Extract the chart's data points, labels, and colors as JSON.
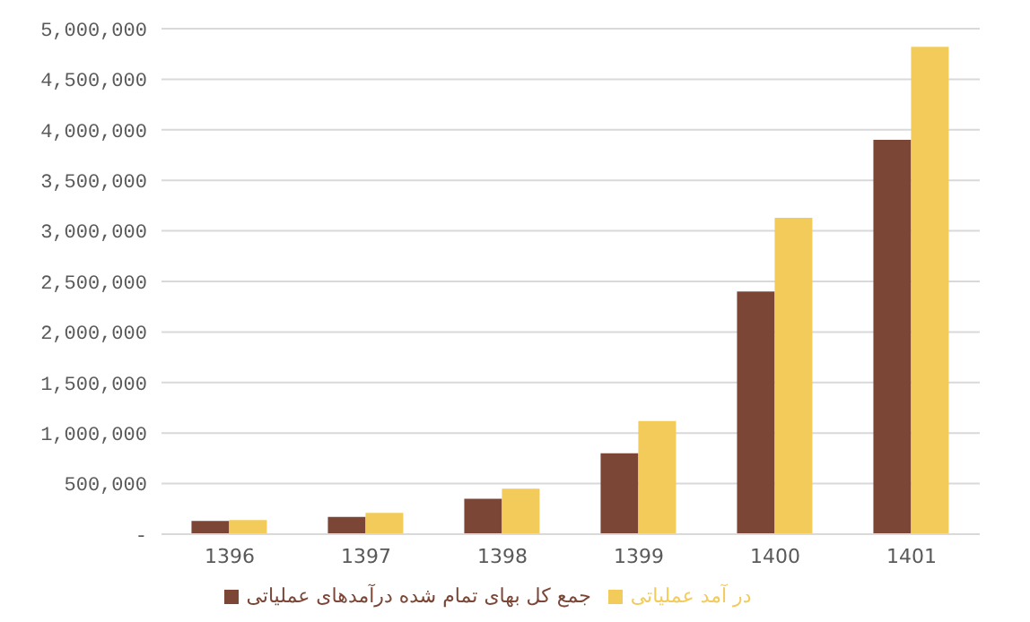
{
  "chart_data": {
    "type": "bar",
    "categories": [
      "1396",
      "1397",
      "1398",
      "1399",
      "1400",
      "1401"
    ],
    "series": [
      {
        "name": "جمع کل بهای تمام شده درآمدهای عملیاتی",
        "color": "#7b4636",
        "values": [
          130000,
          170000,
          350000,
          800000,
          2400000,
          3900000
        ]
      },
      {
        "name": "در آمد عملیاتی",
        "color": "#f2cb5b",
        "values": [
          140000,
          210000,
          450000,
          1120000,
          3130000,
          4820000
        ]
      }
    ],
    "ylim": [
      0,
      5000000
    ],
    "yticks": [
      {
        "value": 0,
        "label": "-"
      },
      {
        "value": 500000,
        "label": "500,000"
      },
      {
        "value": 1000000,
        "label": "1,000,000"
      },
      {
        "value": 1500000,
        "label": "1,500,000"
      },
      {
        "value": 2000000,
        "label": "2,000,000"
      },
      {
        "value": 2500000,
        "label": "2,500,000"
      },
      {
        "value": 3000000,
        "label": "3,000,000"
      },
      {
        "value": 3500000,
        "label": "3,500,000"
      },
      {
        "value": 4000000,
        "label": "4,000,000"
      },
      {
        "value": 4500000,
        "label": "4,500,000"
      },
      {
        "value": 5000000,
        "label": "5,000,000"
      }
    ],
    "grid": "y",
    "legend": "bottom"
  }
}
